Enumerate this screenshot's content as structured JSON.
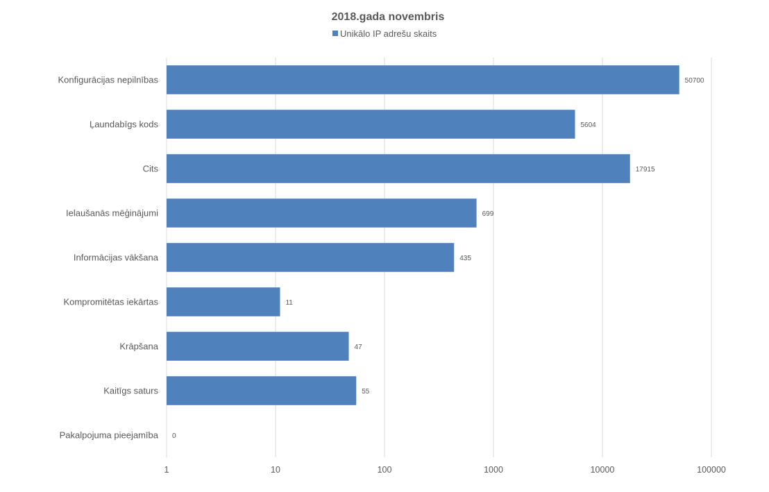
{
  "chart_data": {
    "type": "bar",
    "orientation": "horizontal",
    "title": "2018.gada novembris",
    "xscale": "log",
    "xlim": [
      1,
      100000
    ],
    "xticks": [
      "1",
      "10",
      "100",
      "1000",
      "10000",
      "100000"
    ],
    "grid": true,
    "legend_position": "top",
    "categories": [
      "Konfigurācijas nepilnības",
      "Ļaundabīgs kods",
      "Cits",
      "Ielaušanās mēģinājumi",
      "Informācijas vākšana",
      "Kompromitētas iekārtas",
      "Krāpšana",
      "Kaitīgs saturs",
      "Pakalpojuma pieejamība"
    ],
    "series": [
      {
        "name": "Unikālo IP adrešu skaits",
        "color": "#4f81bd",
        "values": [
          50700,
          5604,
          17915,
          699,
          435,
          11,
          47,
          55,
          0
        ],
        "labels": [
          "50700",
          "5604",
          "17915",
          "699",
          "435",
          "11",
          "47",
          "55",
          "0"
        ]
      }
    ]
  }
}
